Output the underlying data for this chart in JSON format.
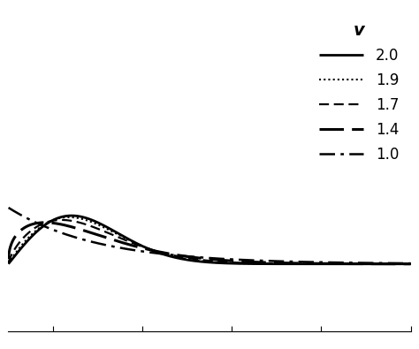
{
  "title": "",
  "nu_values": [
    2.0,
    1.9,
    1.7,
    1.4,
    1.0
  ],
  "legend_label": "v",
  "legend_entries": [
    "2.0",
    "1.9",
    "1.7",
    "1.4",
    "1.0"
  ],
  "x_min": 0.0,
  "x_max": 4.5,
  "y_min": -1.2,
  "y_max": 4.5,
  "background_color": "#ffffff",
  "line_color": "#000000",
  "n_points": 3000,
  "figsize": [
    4.74,
    3.95
  ],
  "dpi": 100,
  "linestyle_params": {
    "2.0": {
      "ls": "solid",
      "lw": 2.0,
      "dash": null
    },
    "1.9": {
      "ls": "dotted",
      "lw": 1.5,
      "dash": [
        1,
        1.5
      ]
    },
    "1.7": {
      "ls": "dashed_short",
      "lw": 1.6,
      "dash": [
        5,
        2.5
      ]
    },
    "1.4": {
      "ls": "dashed_long",
      "lw": 2.2,
      "dash": [
        9,
        3
      ]
    },
    "1.0": {
      "ls": "dashdot",
      "lw": 1.8,
      "dash": [
        7,
        2.5,
        1.5,
        2.5
      ]
    }
  },
  "legend_fontsize": 12,
  "legend_title_fontsize": 14,
  "legend_handlelength": 3.0,
  "legend_labelspacing": 0.6
}
